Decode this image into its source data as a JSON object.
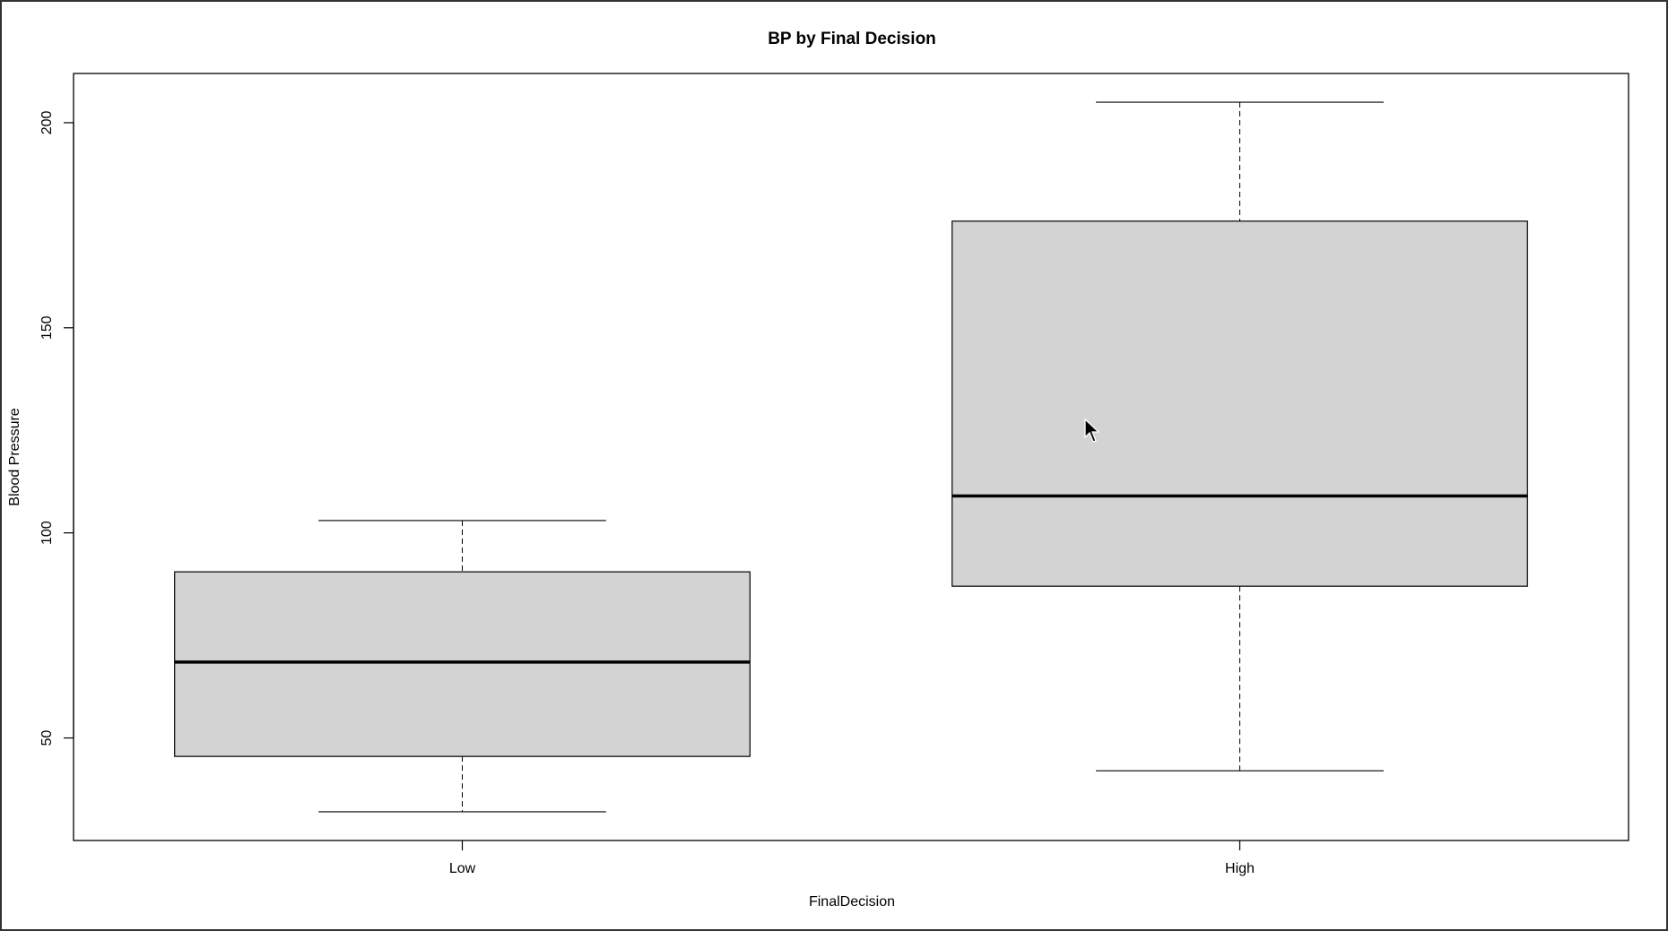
{
  "chart_data": {
    "type": "box",
    "title": "BP by Final Decision",
    "xlabel": "FinalDecision",
    "ylabel": "Blood Pressure",
    "categories": [
      "Low",
      "High"
    ],
    "ylim": [
      25,
      212
    ],
    "yticks": [
      50,
      100,
      150,
      200
    ],
    "boxes": [
      {
        "category": "Low",
        "whisker_low": 32,
        "q1": 45.5,
        "median": 68.5,
        "q3": 90.5,
        "whisker_high": 103
      },
      {
        "category": "High",
        "whisker_low": 42,
        "q1": 87,
        "median": 109,
        "q3": 176,
        "whisker_high": 205
      }
    ],
    "box_fill": "#d3d3d3",
    "grid": false,
    "legend": "none"
  }
}
